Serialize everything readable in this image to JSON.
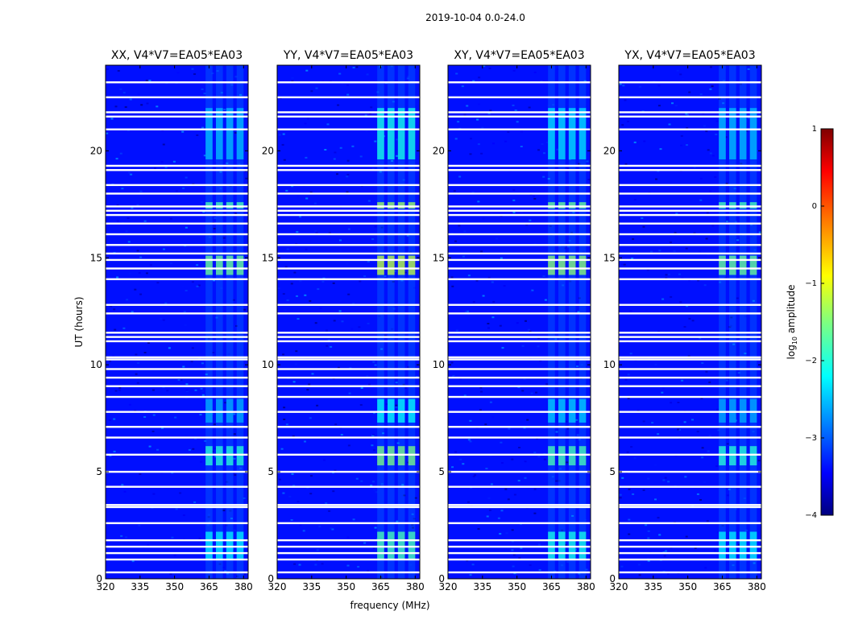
{
  "figure": {
    "suptitle": "2019-10-04 0.0-24.0"
  },
  "chart_data": {
    "type": "heatmap",
    "xlabel": "frequency (MHz)",
    "ylabel": "UT (hours)",
    "xlim": [
      320,
      382
    ],
    "ylim": [
      0,
      24
    ],
    "xticks": [
      "320",
      "335",
      "350",
      "365",
      "380"
    ],
    "yticks": [
      "0",
      "5",
      "10",
      "15",
      "20"
    ],
    "colorscale": "jet",
    "colorbar": {
      "label": "log",
      "label_sub": "10",
      "label_suffix": " amplitude",
      "ticks": [
        "1",
        "0",
        "−1",
        "−2",
        "−3",
        "−4"
      ],
      "range": [
        -4,
        1
      ]
    },
    "panels": [
      {
        "title": "XX, V4*V7=EA05*EA03"
      },
      {
        "title": "YY, V4*V7=EA05*EA03"
      },
      {
        "title": "XY, V4*V7=EA05*EA03"
      },
      {
        "title": "YX, V4*V7=EA05*EA03"
      }
    ],
    "flagged_time_rows_hours": [
      0.3,
      0.9,
      1.2,
      1.5,
      1.8,
      2.6,
      3.35,
      3.45,
      4.3,
      5.0,
      5.8,
      6.6,
      7.1,
      7.8,
      8.5,
      9.0,
      9.4,
      9.8,
      10.25,
      10.35,
      11.1,
      11.3,
      11.5,
      12.4,
      12.8,
      14.0,
      14.5,
      14.9,
      15.2,
      15.6,
      16.1,
      16.6,
      17.0,
      17.2,
      17.4,
      18.0,
      18.4,
      19.1,
      19.3,
      21.0,
      21.6,
      21.8,
      22.5,
      23.2
    ],
    "bright_channel_groups_mhz": [
      [
        363.5,
        366.5
      ],
      [
        368,
        371
      ],
      [
        372.5,
        375.5
      ],
      [
        377,
        380
      ]
    ],
    "bright_time_bands": [
      {
        "t0": 14.2,
        "t1": 15.1,
        "level": -1.3
      },
      {
        "t0": 5.3,
        "t1": 6.2,
        "level": -1.7
      },
      {
        "t0": 17.3,
        "t1": 17.6,
        "level": -1.5
      },
      {
        "t0": 0.9,
        "t1": 2.2,
        "level": -2.0
      },
      {
        "t0": 19.6,
        "t1": 22.0,
        "level": -2.3
      },
      {
        "t0": 7.3,
        "t1": 8.4,
        "level": -2.4
      }
    ],
    "background_level": -3.3
  }
}
